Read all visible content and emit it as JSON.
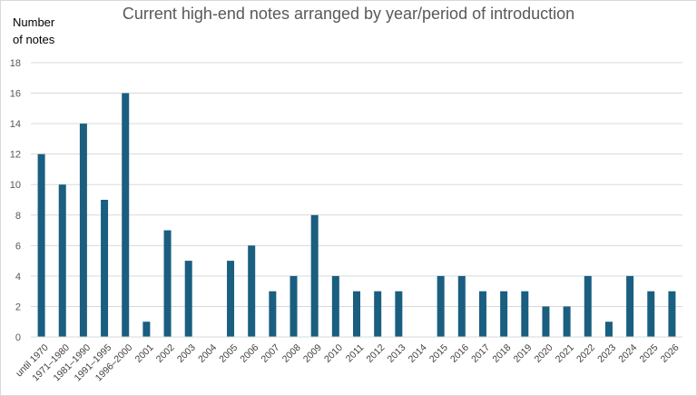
{
  "chart_data": {
    "type": "bar",
    "title": "Current high-end notes arranged by year/period of introduction",
    "ylabel_line1": "Number",
    "ylabel_line2": "of notes",
    "xlabel": "",
    "ylim": [
      0,
      18
    ],
    "yticks": [
      0,
      2,
      4,
      6,
      8,
      10,
      12,
      14,
      16,
      18
    ],
    "grid": true,
    "legend": "none",
    "bar_color": "#1a5e80",
    "categories": [
      "until 1970",
      "1971–1980",
      "1981–1990",
      "1991–1995",
      "1996–2000",
      "2001",
      "2002",
      "2003",
      "2004",
      "2005",
      "2006",
      "2007",
      "2008",
      "2009",
      "2010",
      "2011",
      "2012",
      "2013",
      "2014",
      "2015",
      "2016",
      "2017",
      "2018",
      "2019",
      "2020",
      "2021",
      "2022",
      "2023",
      "2024",
      "2025",
      "2026"
    ],
    "values": [
      12,
      10,
      14,
      9,
      16,
      1,
      7,
      5,
      0,
      5,
      6,
      3,
      4,
      8,
      4,
      3,
      3,
      3,
      0,
      4,
      4,
      3,
      3,
      3,
      2,
      2,
      4,
      1,
      4,
      3,
      3
    ]
  }
}
